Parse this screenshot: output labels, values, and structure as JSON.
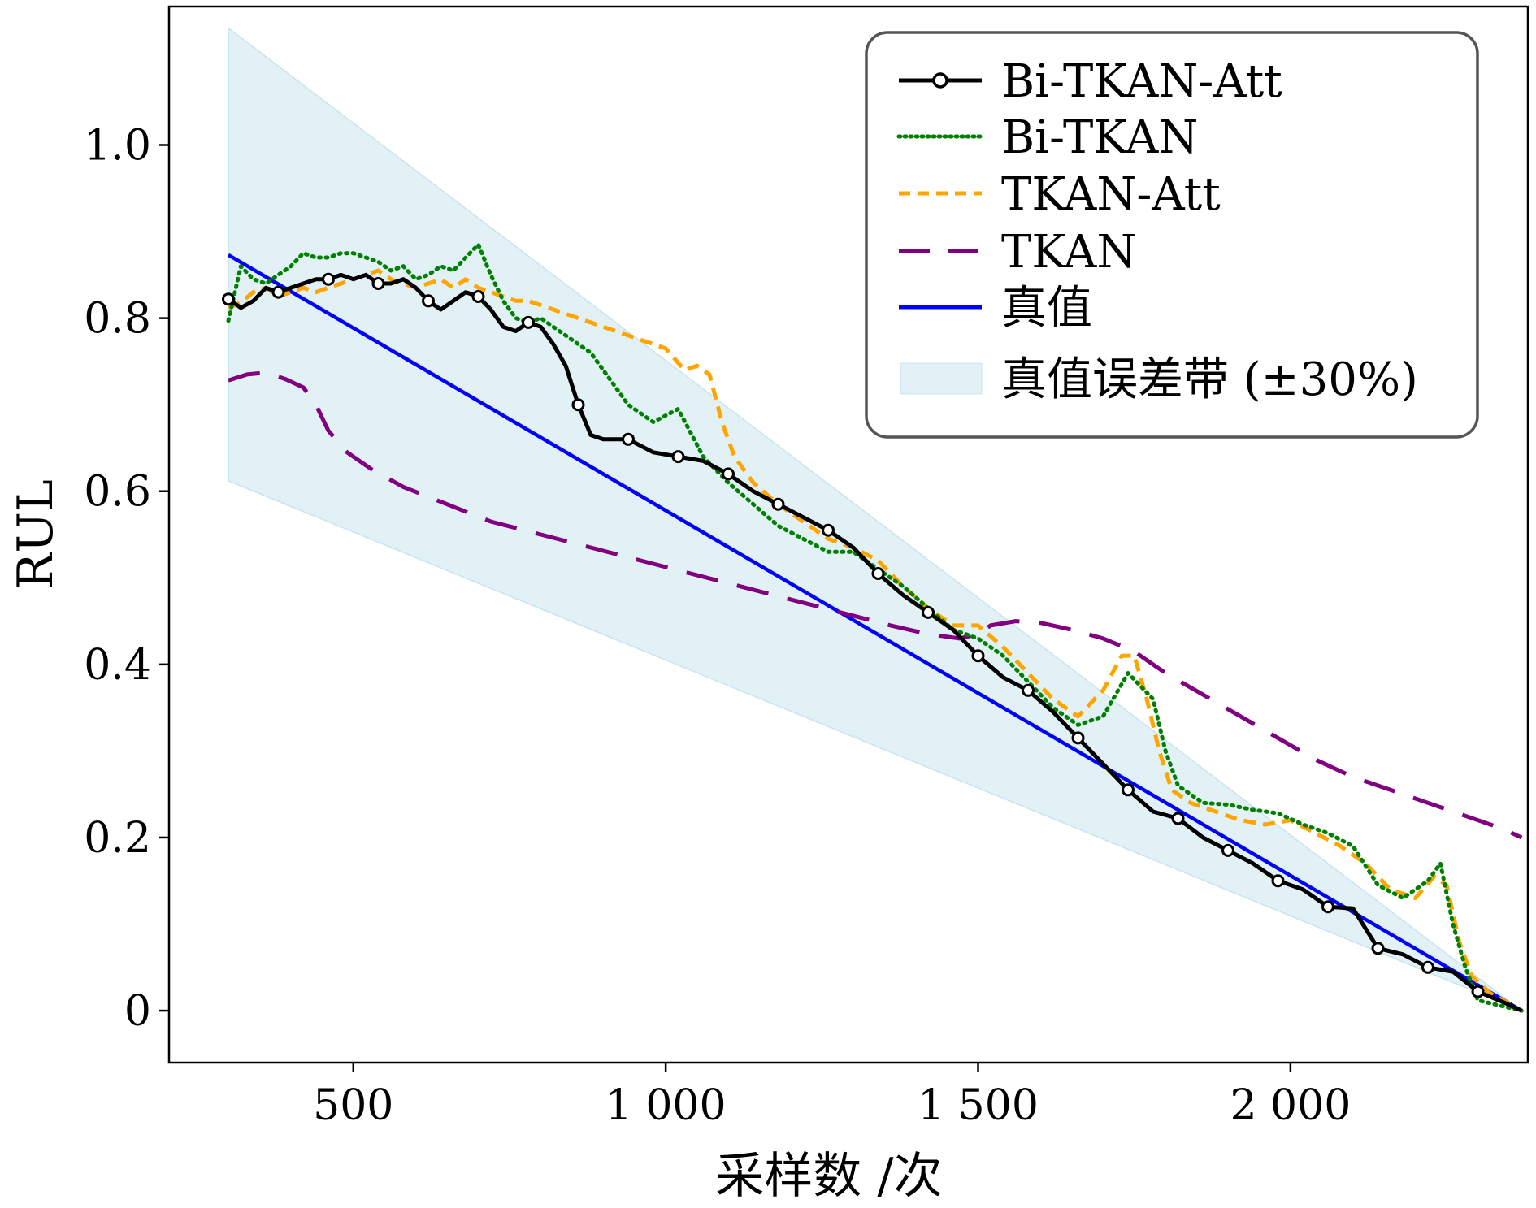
{
  "chart_data": {
    "type": "line",
    "xlabel": "采样数 /次",
    "ylabel": "RUL",
    "xlim": [
      205,
      2380
    ],
    "ylim": [
      -0.06,
      1.16
    ],
    "xticks": [
      500,
      1000,
      1500,
      2000
    ],
    "xtick_labels": [
      "500",
      "1 000",
      "1 500",
      "2 000"
    ],
    "yticks": [
      0,
      0.2,
      0.4,
      0.6,
      0.8,
      1.0
    ],
    "ytick_labels": [
      "0",
      "0.2",
      "0.4",
      "0.6",
      "0.8",
      "1.0"
    ],
    "grid": false,
    "legend_position": "top-right",
    "band": {
      "name": "真值误差带 (±30%)",
      "color": "#add8e6",
      "x": [
        300,
        2370
      ],
      "upper": [
        1.135,
        0.0
      ],
      "lower": [
        0.612,
        0.0
      ]
    },
    "series": [
      {
        "name": "Bi-TKAN-Att",
        "color": "#000000",
        "style": "solid-circle-markers",
        "x": [
          300,
          320,
          340,
          360,
          380,
          400,
          420,
          440,
          460,
          480,
          500,
          520,
          540,
          560,
          580,
          600,
          620,
          640,
          660,
          680,
          700,
          720,
          740,
          760,
          780,
          800,
          820,
          840,
          860,
          880,
          900,
          940,
          980,
          1020,
          1060,
          1100,
          1140,
          1180,
          1220,
          1260,
          1300,
          1340,
          1380,
          1420,
          1460,
          1500,
          1540,
          1580,
          1620,
          1660,
          1700,
          1740,
          1780,
          1820,
          1860,
          1900,
          1940,
          1980,
          2020,
          2060,
          2100,
          2140,
          2180,
          2220,
          2260,
          2300,
          2340,
          2370
        ],
        "y": [
          0.822,
          0.812,
          0.82,
          0.835,
          0.83,
          0.835,
          0.84,
          0.845,
          0.845,
          0.85,
          0.845,
          0.85,
          0.84,
          0.84,
          0.845,
          0.835,
          0.82,
          0.81,
          0.82,
          0.83,
          0.825,
          0.81,
          0.79,
          0.785,
          0.795,
          0.79,
          0.77,
          0.745,
          0.7,
          0.665,
          0.66,
          0.66,
          0.645,
          0.64,
          0.635,
          0.62,
          0.6,
          0.585,
          0.57,
          0.555,
          0.535,
          0.505,
          0.48,
          0.46,
          0.44,
          0.41,
          0.385,
          0.37,
          0.345,
          0.315,
          0.285,
          0.255,
          0.23,
          0.222,
          0.2,
          0.185,
          0.17,
          0.15,
          0.14,
          0.12,
          0.118,
          0.072,
          0.065,
          0.05,
          0.045,
          0.022,
          0.01,
          0.0
        ]
      },
      {
        "name": "Bi-TKAN",
        "color": "#008000",
        "style": "dotted",
        "x": [
          300,
          320,
          340,
          360,
          380,
          400,
          420,
          440,
          460,
          480,
          500,
          520,
          540,
          560,
          580,
          600,
          620,
          640,
          660,
          680,
          700,
          720,
          740,
          760,
          780,
          800,
          820,
          840,
          860,
          880,
          900,
          940,
          980,
          1020,
          1060,
          1100,
          1140,
          1180,
          1220,
          1260,
          1300,
          1340,
          1380,
          1420,
          1460,
          1500,
          1540,
          1580,
          1620,
          1660,
          1700,
          1740,
          1780,
          1800,
          1820,
          1860,
          1900,
          1940,
          1980,
          2020,
          2060,
          2100,
          2140,
          2180,
          2220,
          2240,
          2260,
          2280,
          2300,
          2340,
          2370
        ],
        "y": [
          0.797,
          0.86,
          0.845,
          0.84,
          0.85,
          0.86,
          0.875,
          0.87,
          0.87,
          0.875,
          0.875,
          0.87,
          0.865,
          0.855,
          0.86,
          0.845,
          0.85,
          0.86,
          0.855,
          0.87,
          0.885,
          0.85,
          0.82,
          0.8,
          0.795,
          0.8,
          0.79,
          0.78,
          0.77,
          0.76,
          0.74,
          0.7,
          0.68,
          0.695,
          0.64,
          0.61,
          0.585,
          0.56,
          0.545,
          0.53,
          0.53,
          0.51,
          0.49,
          0.465,
          0.44,
          0.43,
          0.41,
          0.38,
          0.35,
          0.33,
          0.34,
          0.39,
          0.36,
          0.3,
          0.26,
          0.24,
          0.238,
          0.232,
          0.228,
          0.215,
          0.205,
          0.19,
          0.145,
          0.13,
          0.15,
          0.17,
          0.1,
          0.05,
          0.012,
          0.005,
          0.0
        ]
      },
      {
        "name": "TKAN-Att",
        "color": "#ffa500",
        "style": "dashed",
        "x": [
          300,
          320,
          340,
          360,
          380,
          400,
          420,
          440,
          460,
          480,
          500,
          520,
          540,
          560,
          580,
          600,
          620,
          640,
          660,
          680,
          700,
          720,
          740,
          760,
          780,
          800,
          840,
          880,
          920,
          960,
          1000,
          1030,
          1050,
          1070,
          1090,
          1110,
          1140,
          1180,
          1220,
          1260,
          1300,
          1340,
          1380,
          1420,
          1460,
          1500,
          1540,
          1580,
          1620,
          1660,
          1700,
          1730,
          1750,
          1770,
          1790,
          1810,
          1840,
          1880,
          1920,
          1960,
          2000,
          2040,
          2080,
          2120,
          2160,
          2200,
          2230,
          2250,
          2270,
          2290,
          2320,
          2350,
          2370
        ],
        "y": [
          0.812,
          0.818,
          0.83,
          0.835,
          0.825,
          0.83,
          0.835,
          0.83,
          0.835,
          0.84,
          0.845,
          0.85,
          0.855,
          0.845,
          0.84,
          0.835,
          0.84,
          0.845,
          0.835,
          0.845,
          0.835,
          0.83,
          0.825,
          0.82,
          0.82,
          0.815,
          0.805,
          0.795,
          0.785,
          0.775,
          0.765,
          0.74,
          0.745,
          0.735,
          0.68,
          0.64,
          0.61,
          0.585,
          0.565,
          0.545,
          0.535,
          0.52,
          0.49,
          0.465,
          0.445,
          0.445,
          0.42,
          0.39,
          0.36,
          0.34,
          0.37,
          0.41,
          0.41,
          0.36,
          0.3,
          0.255,
          0.24,
          0.23,
          0.22,
          0.215,
          0.22,
          0.205,
          0.19,
          0.17,
          0.14,
          0.13,
          0.155,
          0.145,
          0.08,
          0.04,
          0.02,
          0.008,
          0.0
        ]
      },
      {
        "name": "TKAN",
        "color": "#800080",
        "style": "long-dashed",
        "x": [
          300,
          330,
          360,
          390,
          420,
          440,
          460,
          490,
          530,
          580,
          650,
          720,
          800,
          880,
          960,
          1040,
          1120,
          1200,
          1280,
          1360,
          1420,
          1470,
          1500,
          1520,
          1560,
          1600,
          1650,
          1700,
          1750,
          1800,
          1860,
          1920,
          1980,
          2040,
          2100,
          2160,
          2220,
          2280,
          2340,
          2370
        ],
        "y": [
          0.728,
          0.735,
          0.737,
          0.73,
          0.72,
          0.7,
          0.67,
          0.645,
          0.625,
          0.605,
          0.585,
          0.565,
          0.55,
          0.535,
          0.52,
          0.505,
          0.49,
          0.475,
          0.46,
          0.445,
          0.435,
          0.43,
          0.435,
          0.445,
          0.45,
          0.448,
          0.44,
          0.43,
          0.415,
          0.39,
          0.365,
          0.34,
          0.315,
          0.29,
          0.27,
          0.255,
          0.24,
          0.225,
          0.21,
          0.2
        ]
      },
      {
        "name": "真值",
        "color": "#0000ff",
        "style": "solid",
        "x": [
          300,
          2370
        ],
        "y": [
          0.873,
          0.0
        ]
      }
    ]
  }
}
